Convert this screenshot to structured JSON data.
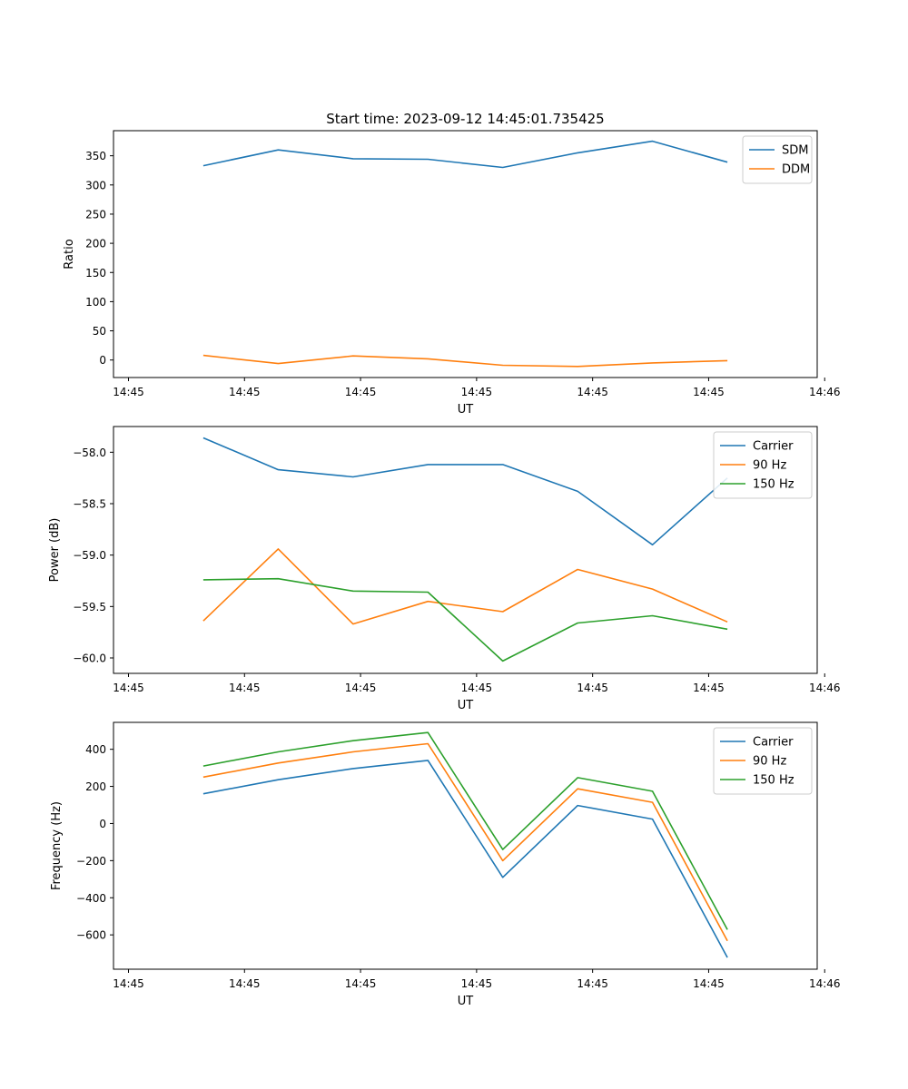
{
  "figure": {
    "title": "Start time: 2023-09-12 14:45:01.735425"
  },
  "chart_data": [
    {
      "type": "line",
      "ylabel": "Ratio",
      "xlabel": "UT",
      "xlim": [
        -0.2,
        9.2
      ],
      "ylim": [
        -30,
        393
      ],
      "x": [
        1,
        2,
        3,
        4,
        5,
        6,
        7,
        8
      ],
      "x_ticks": [
        0,
        1.55,
        3.1,
        4.65,
        6.2,
        7.75,
        9.3
      ],
      "x_tick_labels": [
        "14:45",
        "14:45",
        "14:45",
        "14:45",
        "14:45",
        "14:45",
        "14:46"
      ],
      "y_ticks": [
        0,
        50,
        100,
        150,
        200,
        250,
        300,
        350
      ],
      "legend": "top-right",
      "series": [
        {
          "name": "SDM",
          "color": "#1f77b4",
          "values": [
            333,
            360,
            345,
            344,
            330,
            355,
            375,
            339
          ]
        },
        {
          "name": "DDM",
          "color": "#ff7f0e",
          "values": [
            8,
            -6,
            7,
            2,
            -9,
            -11,
            -5,
            -1
          ]
        }
      ]
    },
    {
      "type": "line",
      "ylabel": "Power (dB)",
      "xlabel": "UT",
      "xlim": [
        -0.2,
        9.2
      ],
      "ylim": [
        -60.15,
        -57.75
      ],
      "x": [
        1,
        2,
        3,
        4,
        5,
        6,
        7,
        8
      ],
      "x_ticks": [
        0,
        1.55,
        3.1,
        4.65,
        6.2,
        7.75,
        9.3
      ],
      "x_tick_labels": [
        "14:45",
        "14:45",
        "14:45",
        "14:45",
        "14:45",
        "14:45",
        "14:46"
      ],
      "y_ticks": [
        -58.0,
        -58.5,
        -59.0,
        -59.5,
        -60.0
      ],
      "y_tick_labels": [
        "−58.0",
        "−58.5",
        "−59.0",
        "−59.5",
        "−60.0"
      ],
      "legend": "top-right",
      "series": [
        {
          "name": "Carrier",
          "color": "#1f77b4",
          "values": [
            -57.86,
            -58.17,
            -58.24,
            -58.12,
            -58.12,
            -58.38,
            -58.9,
            -58.25
          ]
        },
        {
          "name": "90 Hz",
          "color": "#ff7f0e",
          "values": [
            -59.64,
            -58.94,
            -59.67,
            -59.45,
            -59.55,
            -59.14,
            -59.33,
            -59.65
          ]
        },
        {
          "name": "150 Hz",
          "color": "#2ca02c",
          "values": [
            -59.24,
            -59.23,
            -59.35,
            -59.36,
            -60.03,
            -59.66,
            -59.59,
            -59.72
          ]
        }
      ]
    },
    {
      "type": "line",
      "ylabel": "Frequency (Hz)",
      "xlabel": "UT",
      "xlim": [
        -0.2,
        9.2
      ],
      "ylim": [
        -785,
        545
      ],
      "x": [
        1,
        2,
        3,
        4,
        5,
        6,
        7,
        8
      ],
      "x_ticks": [
        0,
        1.55,
        3.1,
        4.65,
        6.2,
        7.75,
        9.3
      ],
      "x_tick_labels": [
        "14:45",
        "14:45",
        "14:45",
        "14:45",
        "14:45",
        "14:45",
        "14:46"
      ],
      "y_ticks": [
        400,
        200,
        0,
        -200,
        -400,
        -600
      ],
      "y_tick_labels": [
        "400",
        "200",
        "0",
        "−200",
        "−400",
        "−600"
      ],
      "legend": "top-right",
      "series": [
        {
          "name": "Carrier",
          "color": "#1f77b4",
          "values": [
            160,
            236,
            296,
            340,
            -290,
            97,
            24,
            -722
          ]
        },
        {
          "name": "90 Hz",
          "color": "#ff7f0e",
          "values": [
            250,
            326,
            386,
            430,
            -200,
            187,
            114,
            -632
          ]
        },
        {
          "name": "150 Hz",
          "color": "#2ca02c",
          "values": [
            310,
            386,
            446,
            490,
            -140,
            247,
            174,
            -572
          ]
        }
      ]
    }
  ]
}
